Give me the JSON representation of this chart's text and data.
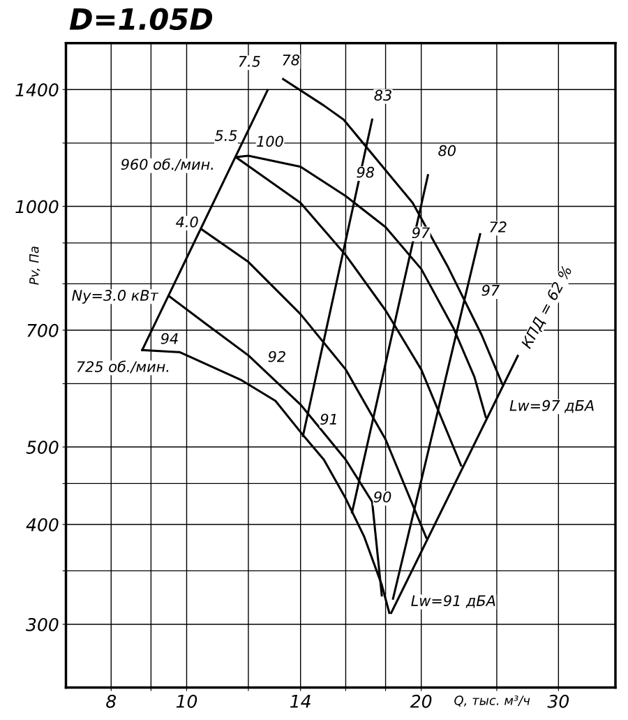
{
  "chart_data": {
    "type": "line",
    "title": "D=1.05D",
    "xlabel": "Q, тыс. м³/ч",
    "ylabel": "Pv, Па",
    "log": "xy",
    "grid": true,
    "marker": "none",
    "line_style": "solid",
    "xlim": [
      7,
      35.5
    ],
    "ylim": [
      250,
      1600
    ],
    "xticks": [
      8,
      {
        "value": 9,
        "label": null
      },
      10,
      {
        "value": 12,
        "label": null
      },
      14,
      {
        "value": 16,
        "label": null
      },
      {
        "value": 18,
        "label": null
      },
      20,
      {
        "value": 25,
        "label": null
      },
      30
    ],
    "yticks": [
      300,
      {
        "value": 350,
        "label": null
      },
      400,
      {
        "value": 450,
        "label": null
      },
      500,
      {
        "value": 600,
        "label": null
      },
      700,
      {
        "value": 800,
        "label": null
      },
      {
        "value": 900,
        "label": null
      },
      1000,
      {
        "value": 1200,
        "label": null
      },
      1400
    ],
    "series": [
      {
        "color": "#000000",
        "x": [
          11.6,
          12.0,
          14.0,
          16.0,
          18.0,
          20.0,
          22.0,
          23.4,
          24.2
        ],
        "values": [
          1153,
          1157,
          1121,
          1030,
          942,
          835,
          704,
          612,
          545
        ]
      },
      {
        "color": "#000000",
        "x": [
          8.77,
          9.8,
          11.76,
          13.0,
          14.0,
          15.0,
          16.0,
          16.9,
          17.8,
          18.2
        ],
        "values": [
          661,
          657,
          606,
          571,
          522,
          482,
          431,
          386,
          336,
          310
        ]
      },
      {
        "color": "#000000",
        "x": [
          13.3,
          15.0,
          15.9,
          19.5,
          21.6,
          23.9,
          25.4
        ],
        "values": [
          1443,
          1337,
          1284,
          1010,
          843,
          691,
          600
        ]
      },
      {
        "color": "#000000",
        "x": [
          11.6,
          14.0,
          16.0,
          18.0,
          20.0,
          22.5
        ],
        "values": [
          1150,
          1010,
          869,
          741,
          625,
          474
        ]
      },
      {
        "color": "#000000",
        "x": [
          10.45,
          12.0,
          14.0,
          16.0,
          18.0,
          20.3
        ],
        "values": [
          936,
          852,
          733,
          625,
          511,
          385
        ]
      },
      {
        "color": "#000000",
        "x": [
          9.51,
          10.6,
          12.0,
          14.0,
          16.0,
          17.3,
          17.8
        ],
        "values": [
          771,
          712,
          651,
          565,
          482,
          427,
          326
        ]
      },
      {
        "color": "#000000",
        "x": [
          8.77,
          12.7
        ],
        "values": [
          661,
          1397
        ]
      },
      {
        "color": "#000000",
        "x": [
          14.1,
          17.3
        ],
        "values": [
          516,
          1284
        ]
      },
      {
        "color": "#000000",
        "x": [
          16.3,
          20.4
        ],
        "values": [
          414,
          1094
        ]
      },
      {
        "color": "#000000",
        "x": [
          18.4,
          23.8
        ],
        "values": [
          323,
          923
        ]
      },
      {
        "color": "#000000",
        "x": [
          18.3,
          26.6
        ],
        "values": [
          310,
          650
        ]
      }
    ],
    "annotations": [
      "7.5",
      "78",
      "83",
      "80",
      "72",
      "КПД = 62 %",
      "5.5",
      "100",
      "960 об./мин.",
      "98",
      "4.0",
      "97",
      "97",
      "Ny=3.0 кВт",
      "94",
      "92",
      "725 об./мин.",
      "91",
      "90",
      "Lw=97 дБА",
      "Lw=91 дБА"
    ]
  }
}
